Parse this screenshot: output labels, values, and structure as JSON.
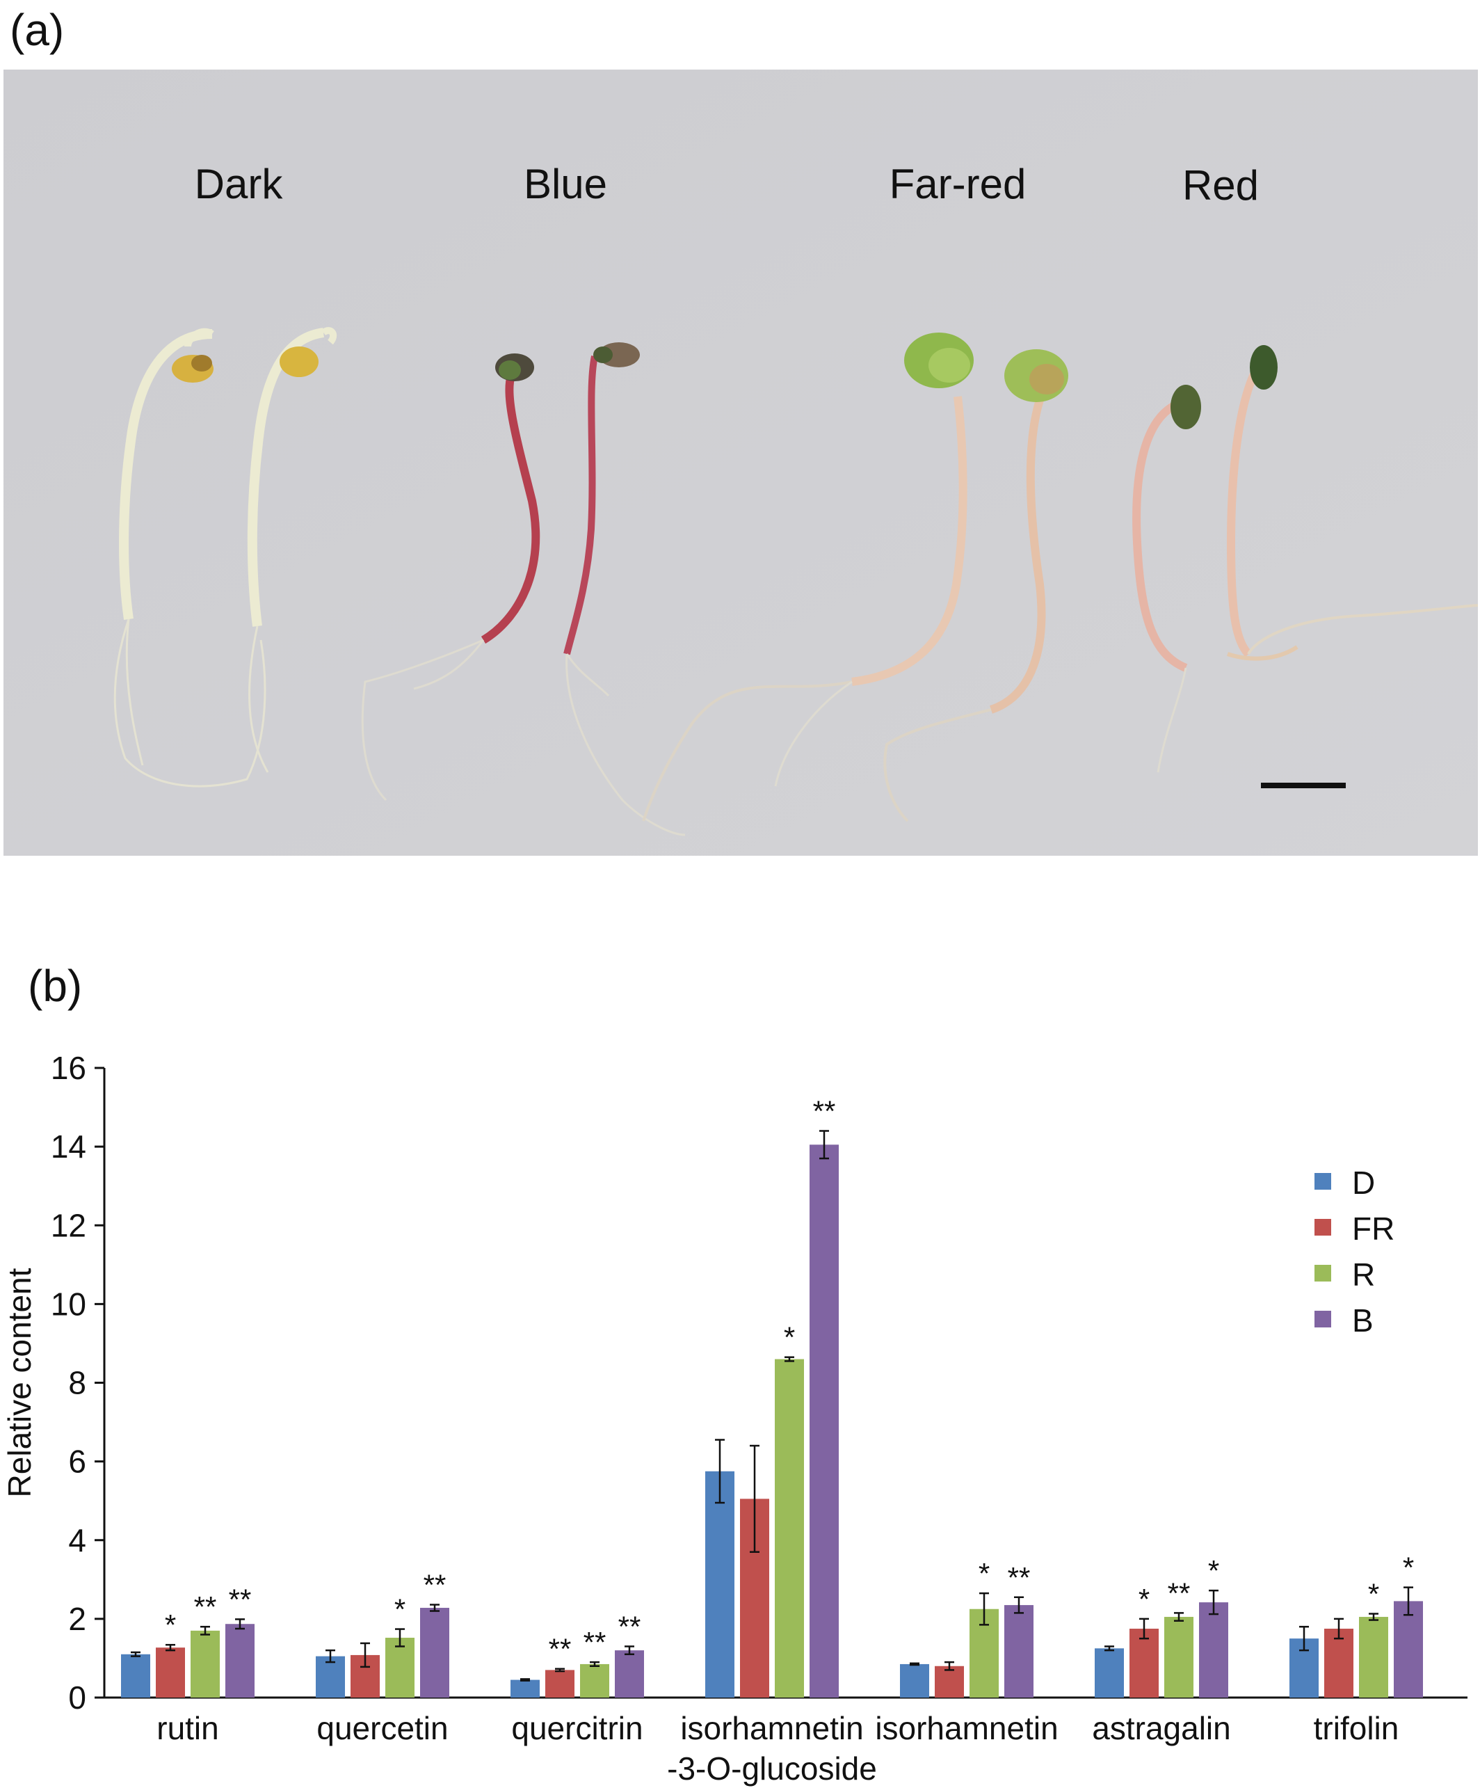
{
  "panel_a": {
    "label": "(a)",
    "conditions": [
      "Dark",
      "Blue",
      "Far-red",
      "Red"
    ]
  },
  "panel_b": {
    "label": "(b)"
  },
  "colors": {
    "D": "#4f81bd",
    "FR": "#c0504d",
    "R": "#9bbb59",
    "B": "#8064a2",
    "background_photo": "#cfcfd3"
  },
  "chart_data": {
    "type": "bar",
    "categories": [
      "rutin",
      "quercetin",
      "quercitrin",
      "isorhamnetin\n-3-O-glucoside",
      "isorhamnetin",
      "astragalin",
      "trifolin"
    ],
    "category_lines": [
      [
        "rutin"
      ],
      [
        "quercetin"
      ],
      [
        "quercitrin"
      ],
      [
        "isorhamnetin",
        "-3-O-glucoside"
      ],
      [
        "isorhamnetin"
      ],
      [
        "astragalin"
      ],
      [
        "trifolin"
      ]
    ],
    "series": [
      {
        "name": "D",
        "values": [
          1.1,
          1.05,
          0.45,
          5.75,
          0.85,
          1.25,
          1.5
        ],
        "errors": [
          0.05,
          0.15,
          0.02,
          0.8,
          0.02,
          0.05,
          0.3
        ],
        "sig": [
          "",
          "",
          "",
          "",
          "",
          "",
          ""
        ]
      },
      {
        "name": "FR",
        "values": [
          1.27,
          1.08,
          0.7,
          5.05,
          0.8,
          1.75,
          1.75
        ],
        "errors": [
          0.07,
          0.3,
          0.03,
          1.35,
          0.1,
          0.25,
          0.25
        ],
        "sig": [
          "*",
          "",
          "**",
          "",
          "",
          "*",
          ""
        ]
      },
      {
        "name": "R",
        "values": [
          1.7,
          1.52,
          0.85,
          8.6,
          2.25,
          2.05,
          2.05
        ],
        "errors": [
          0.1,
          0.22,
          0.05,
          0.05,
          0.4,
          0.1,
          0.08
        ],
        "sig": [
          "**",
          "*",
          "**",
          "*",
          "*",
          "**",
          "*"
        ]
      },
      {
        "name": "B",
        "values": [
          1.87,
          2.28,
          1.2,
          14.05,
          2.35,
          2.42,
          2.45
        ],
        "errors": [
          0.12,
          0.08,
          0.1,
          0.35,
          0.2,
          0.3,
          0.35
        ],
        "sig": [
          "**",
          "**",
          "**",
          "**",
          "**",
          "*",
          "*"
        ]
      }
    ],
    "ylabel": "Relative content",
    "ylim": [
      0,
      16
    ],
    "yticks": [
      0,
      2,
      4,
      6,
      8,
      10,
      12,
      14,
      16
    ],
    "legend": {
      "placement": "right",
      "entries": [
        "D",
        "FR",
        "R",
        "B"
      ]
    },
    "grid": false
  }
}
